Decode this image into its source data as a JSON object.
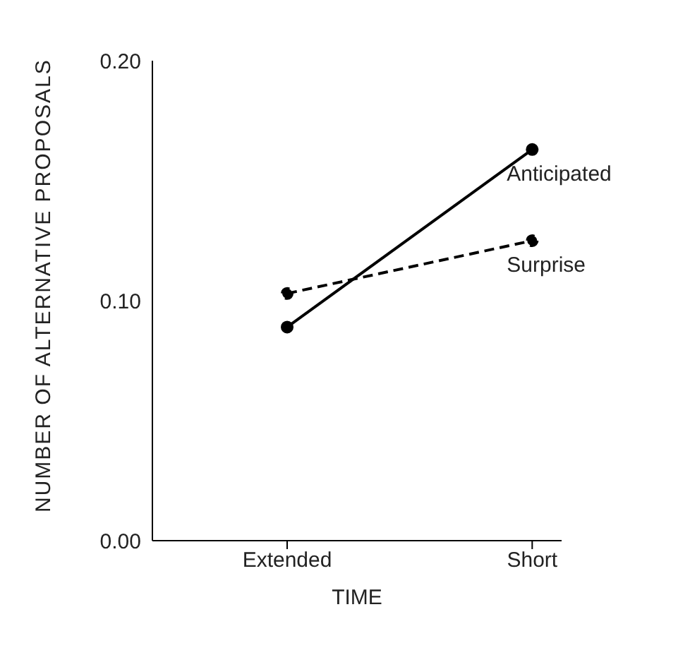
{
  "chart_data": {
    "type": "line",
    "xlabel": "TIME",
    "ylabel": "NUMBER OF ALTERNATIVE PROPOSALS",
    "categories": [
      "Extended",
      "Short"
    ],
    "series": [
      {
        "name": "Anticipated",
        "color": "#000000",
        "values": [
          0.089,
          0.163
        ],
        "line_style": "solid"
      },
      {
        "name": "Surprise",
        "color": "#000000",
        "values": [
          0.103,
          0.125
        ],
        "line_style": "dashed"
      }
    ],
    "ylim": [
      0,
      0.2
    ],
    "yticks": [
      {
        "value": 0,
        "label": "0.00"
      },
      {
        "value": 0.1,
        "label": "0.10"
      },
      {
        "value": 0.2,
        "label": "0.20"
      }
    ],
    "grid": false,
    "legend": false,
    "marker": "circle"
  }
}
